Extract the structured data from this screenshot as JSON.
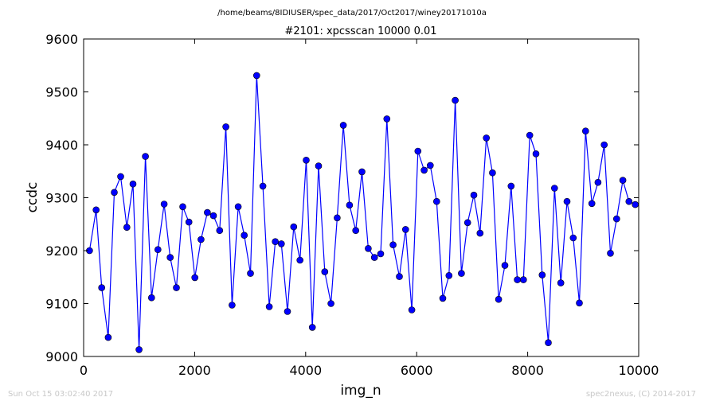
{
  "header": {
    "supertitle": "/home/beams/8IDIUSER/spec_data/2017/Oct2017/winey20171010a"
  },
  "footer": {
    "timestamp": "Sun Oct 15 03:02:40 2017",
    "credit": "spec2nexus, (C) 2014-2017"
  },
  "chart_data": {
    "type": "line",
    "title": "#2101: xpcsscan 10000 0.01",
    "xlabel": "img_n",
    "ylabel": "ccdc",
    "xlim": [
      0,
      10000
    ],
    "ylim": [
      9000,
      9600
    ],
    "xticks": [
      0,
      2000,
      4000,
      6000,
      8000,
      10000
    ],
    "yticks": [
      9000,
      9100,
      9200,
      9300,
      9400,
      9500,
      9600
    ],
    "xtick_labels": [
      "0",
      "2000",
      "4000",
      "6000",
      "8000",
      "10000"
    ],
    "ytick_labels": [
      "9000",
      "9100",
      "9200",
      "9300",
      "9400",
      "9500",
      "9600"
    ],
    "grid": false,
    "series_color": "#0000ff",
    "series": [
      {
        "x": [
          106,
          225,
          325,
          443,
          553,
          667,
          779,
          889,
          999,
          1114,
          1224,
          1338,
          1450,
          1559,
          1671,
          1786,
          1896,
          2005,
          2115,
          2229,
          2339,
          2451,
          2563,
          2674,
          2785,
          2894,
          3006,
          3117,
          3230,
          3344,
          3454,
          3563,
          3673,
          3785,
          3898,
          4010,
          4121,
          4233,
          4345,
          4456,
          4568,
          4679,
          4790,
          4903,
          5014,
          5127,
          5240,
          5351,
          5464,
          5575,
          5688,
          5800,
          5912,
          6023,
          6135,
          6246,
          6360,
          6470,
          6582,
          6694,
          6806,
          6918,
          7030,
          7142,
          7255,
          7366,
          7477,
          7590,
          7702,
          7813,
          7924,
          8037,
          8149,
          8261,
          8372,
          8484,
          8597,
          8709,
          8820,
          8931,
          9043,
          9157,
          9267,
          9379,
          9491,
          9602,
          9714,
          9825,
          9938
        ],
        "values": [
          9200,
          9277,
          9130,
          9036,
          9310,
          9340,
          9244,
          9326,
          9013,
          9378,
          9111,
          9202,
          9288,
          9187,
          9130,
          9283,
          9254,
          9149,
          9221,
          9272,
          9266,
          9238,
          9434,
          9097,
          9283,
          9229,
          9157,
          9531,
          9322,
          9094,
          9217,
          9213,
          9085,
          9245,
          9182,
          9371,
          9055,
          9360,
          9160,
          9100,
          9262,
          9437,
          9286,
          9238,
          9349,
          9204,
          9187,
          9194,
          9449,
          9211,
          9151,
          9240,
          9088,
          9388,
          9352,
          9361,
          9293,
          9110,
          9153,
          9484,
          9157,
          9253,
          9305,
          9233,
          9413,
          9347,
          9108,
          9172,
          9322,
          9145,
          9145,
          9418,
          9383,
          9154,
          9026,
          9318,
          9139,
          9293,
          9224,
          9101,
          9426,
          9289,
          9329,
          9400,
          9195,
          9260,
          9333,
          9293,
          9287
        ]
      }
    ]
  }
}
